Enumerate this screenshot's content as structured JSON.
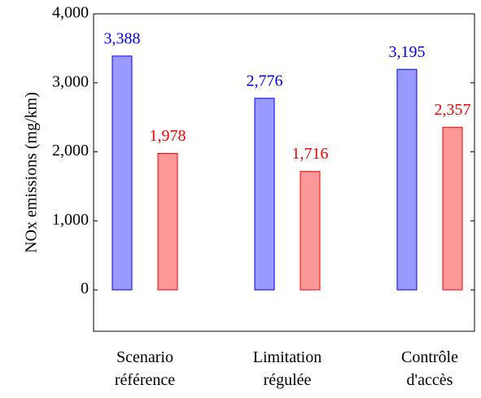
{
  "chart_data": {
    "type": "bar",
    "ylabel": "NOx emissions (mg/km)",
    "categories": [
      "Scenario référence",
      "Limitation régulée",
      "Contrôle d'accès"
    ],
    "series": [
      {
        "color": "#0000ff",
        "values": [
          3388,
          2776,
          3195
        ],
        "value_labels": [
          "3,388",
          "2,776",
          "3,195"
        ]
      },
      {
        "color": "#ff0000",
        "values": [
          1978,
          1716,
          2357
        ],
        "value_labels": [
          "1,978",
          "1,716",
          "2,357"
        ]
      }
    ],
    "ylim": [
      -600,
      4000
    ],
    "yticks": [
      0,
      {
        "value": 1000,
        "label": "1,000"
      },
      {
        "value": 2000,
        "label": "2,000"
      },
      {
        "value": 3000,
        "label": "3,000"
      },
      {
        "value": 4000,
        "label": "4,000"
      }
    ]
  }
}
